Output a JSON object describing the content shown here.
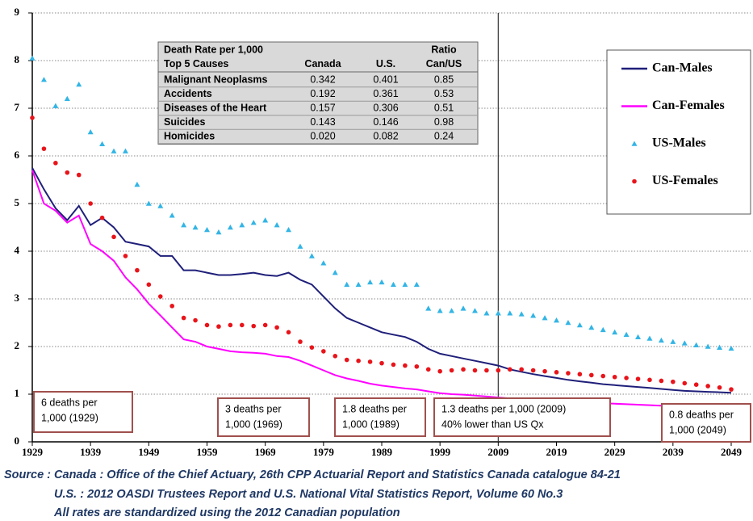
{
  "chart_data": {
    "type": "line",
    "x": [
      1929,
      1931,
      1933,
      1935,
      1937,
      1939,
      1941,
      1943,
      1945,
      1947,
      1949,
      1951,
      1953,
      1955,
      1957,
      1959,
      1961,
      1963,
      1965,
      1967,
      1969,
      1971,
      1973,
      1975,
      1977,
      1979,
      1981,
      1983,
      1985,
      1987,
      1989,
      1991,
      1993,
      1995,
      1997,
      1999,
      2001,
      2003,
      2005,
      2007,
      2009,
      2011,
      2013,
      2015,
      2017,
      2019,
      2021,
      2023,
      2025,
      2027,
      2029,
      2031,
      2033,
      2035,
      2037,
      2039,
      2041,
      2043,
      2045,
      2047,
      2049
    ],
    "series": [
      {
        "name": "Can-Males",
        "color": "#1f1f7a",
        "style": "line",
        "values": [
          5.75,
          5.3,
          4.9,
          4.65,
          4.95,
          4.55,
          4.7,
          4.5,
          4.2,
          4.15,
          4.1,
          3.9,
          3.9,
          3.6,
          3.6,
          3.55,
          3.5,
          3.5,
          3.52,
          3.55,
          3.5,
          3.48,
          3.55,
          3.4,
          3.3,
          3.05,
          2.8,
          2.6,
          2.5,
          2.4,
          2.3,
          2.25,
          2.2,
          2.1,
          1.95,
          1.85,
          1.8,
          1.75,
          1.7,
          1.65,
          1.6,
          1.52,
          1.47,
          1.42,
          1.38,
          1.34,
          1.3,
          1.27,
          1.24,
          1.21,
          1.19,
          1.17,
          1.15,
          1.13,
          1.11,
          1.09,
          1.07,
          1.06,
          1.05,
          1.04,
          1.03
        ]
      },
      {
        "name": "Can-Females",
        "color": "#ff00ff",
        "style": "line",
        "values": [
          5.7,
          5.0,
          4.85,
          4.6,
          4.75,
          4.15,
          4.0,
          3.8,
          3.45,
          3.2,
          2.9,
          2.65,
          2.4,
          2.15,
          2.1,
          2.0,
          1.95,
          1.9,
          1.88,
          1.87,
          1.85,
          1.8,
          1.78,
          1.7,
          1.6,
          1.5,
          1.4,
          1.33,
          1.28,
          1.22,
          1.18,
          1.15,
          1.12,
          1.1,
          1.06,
          1.02,
          1.0,
          0.99,
          0.97,
          0.95,
          0.93,
          0.91,
          0.89,
          0.88,
          0.86,
          0.85,
          0.84,
          0.83,
          0.82,
          0.81,
          0.8,
          0.79,
          0.78,
          0.77,
          0.76,
          0.75,
          0.74,
          0.73,
          0.72,
          0.72,
          0.71
        ]
      },
      {
        "name": "US-Males",
        "color": "#33b5e5",
        "style": "triangle",
        "values": [
          8.05,
          7.6,
          7.05,
          7.2,
          7.5,
          6.5,
          6.25,
          6.1,
          6.1,
          5.4,
          5.0,
          4.95,
          4.75,
          4.55,
          4.5,
          4.45,
          4.4,
          4.5,
          4.55,
          4.6,
          4.65,
          4.55,
          4.45,
          4.1,
          3.9,
          3.75,
          3.55,
          3.3,
          3.3,
          3.35,
          3.35,
          3.3,
          3.3,
          3.3,
          2.8,
          2.75,
          2.75,
          2.8,
          2.75,
          2.7,
          2.7,
          2.7,
          2.68,
          2.65,
          2.6,
          2.55,
          2.5,
          2.45,
          2.4,
          2.35,
          2.3,
          2.25,
          2.2,
          2.17,
          2.13,
          2.1,
          2.07,
          2.03,
          2.0,
          1.98,
          1.96
        ]
      },
      {
        "name": "US-Females",
        "color": "#e8141a",
        "style": "dot",
        "values": [
          6.8,
          6.15,
          5.85,
          5.65,
          5.6,
          5.0,
          4.7,
          4.3,
          3.9,
          3.6,
          3.3,
          3.05,
          2.85,
          2.6,
          2.55,
          2.45,
          2.42,
          2.45,
          2.45,
          2.43,
          2.45,
          2.4,
          2.3,
          2.1,
          1.98,
          1.9,
          1.8,
          1.72,
          1.7,
          1.68,
          1.65,
          1.62,
          1.6,
          1.58,
          1.52,
          1.48,
          1.5,
          1.52,
          1.5,
          1.5,
          1.5,
          1.52,
          1.52,
          1.5,
          1.48,
          1.46,
          1.44,
          1.42,
          1.4,
          1.38,
          1.36,
          1.34,
          1.32,
          1.3,
          1.28,
          1.26,
          1.23,
          1.2,
          1.17,
          1.14,
          1.1
        ]
      }
    ],
    "xlim": [
      1929,
      2049
    ],
    "xticks": [
      1929,
      1939,
      1949,
      1959,
      1969,
      1979,
      1989,
      1999,
      2009,
      2019,
      2029,
      2039,
      2049
    ],
    "ylim": [
      0,
      9
    ],
    "yticks": [
      0,
      1,
      2,
      3,
      4,
      5,
      6,
      7,
      8,
      9
    ],
    "grid": true,
    "vline": 2009,
    "legend": "upper right",
    "table": {
      "header_top": [
        "Death Rate per 1,000",
        "Ratio"
      ],
      "header": [
        "Top 5 Causes",
        "Canada",
        "U.S.",
        "Can/US"
      ],
      "rows": [
        [
          "Malignant Neoplasms",
          "0.342",
          "0.401",
          "0.85"
        ],
        [
          "Accidents",
          "0.192",
          "0.361",
          "0.53"
        ],
        [
          "Diseases of the Heart",
          "0.157",
          "0.306",
          "0.51"
        ],
        [
          "Suicides",
          "0.143",
          "0.146",
          "0.98"
        ],
        [
          "Homicides",
          "0.020",
          "0.082",
          "0.24"
        ]
      ]
    },
    "annotations": [
      [
        "6 deaths per",
        "1,000 (1929)"
      ],
      [
        "3 deaths per",
        "1,000 (1969)"
      ],
      [
        "1.8 deaths per",
        "1,000 (1989)"
      ],
      [
        "1.3 deaths per 1,000 (2009)",
        "40% lower than US Qx"
      ],
      [
        "0.8 deaths per",
        "1,000 (2049)"
      ]
    ],
    "source": [
      "Source : Canada : Office of the Chief Actuary, 26th CPP Actuarial Report and Statistics Canada catalogue 84-21",
      "U.S. : 2012 OASDI Trustees Report and U.S. National Vital Statistics Report, Volume 60 No.3",
      "All rates are standardized using the 2012 Canadian population"
    ]
  }
}
